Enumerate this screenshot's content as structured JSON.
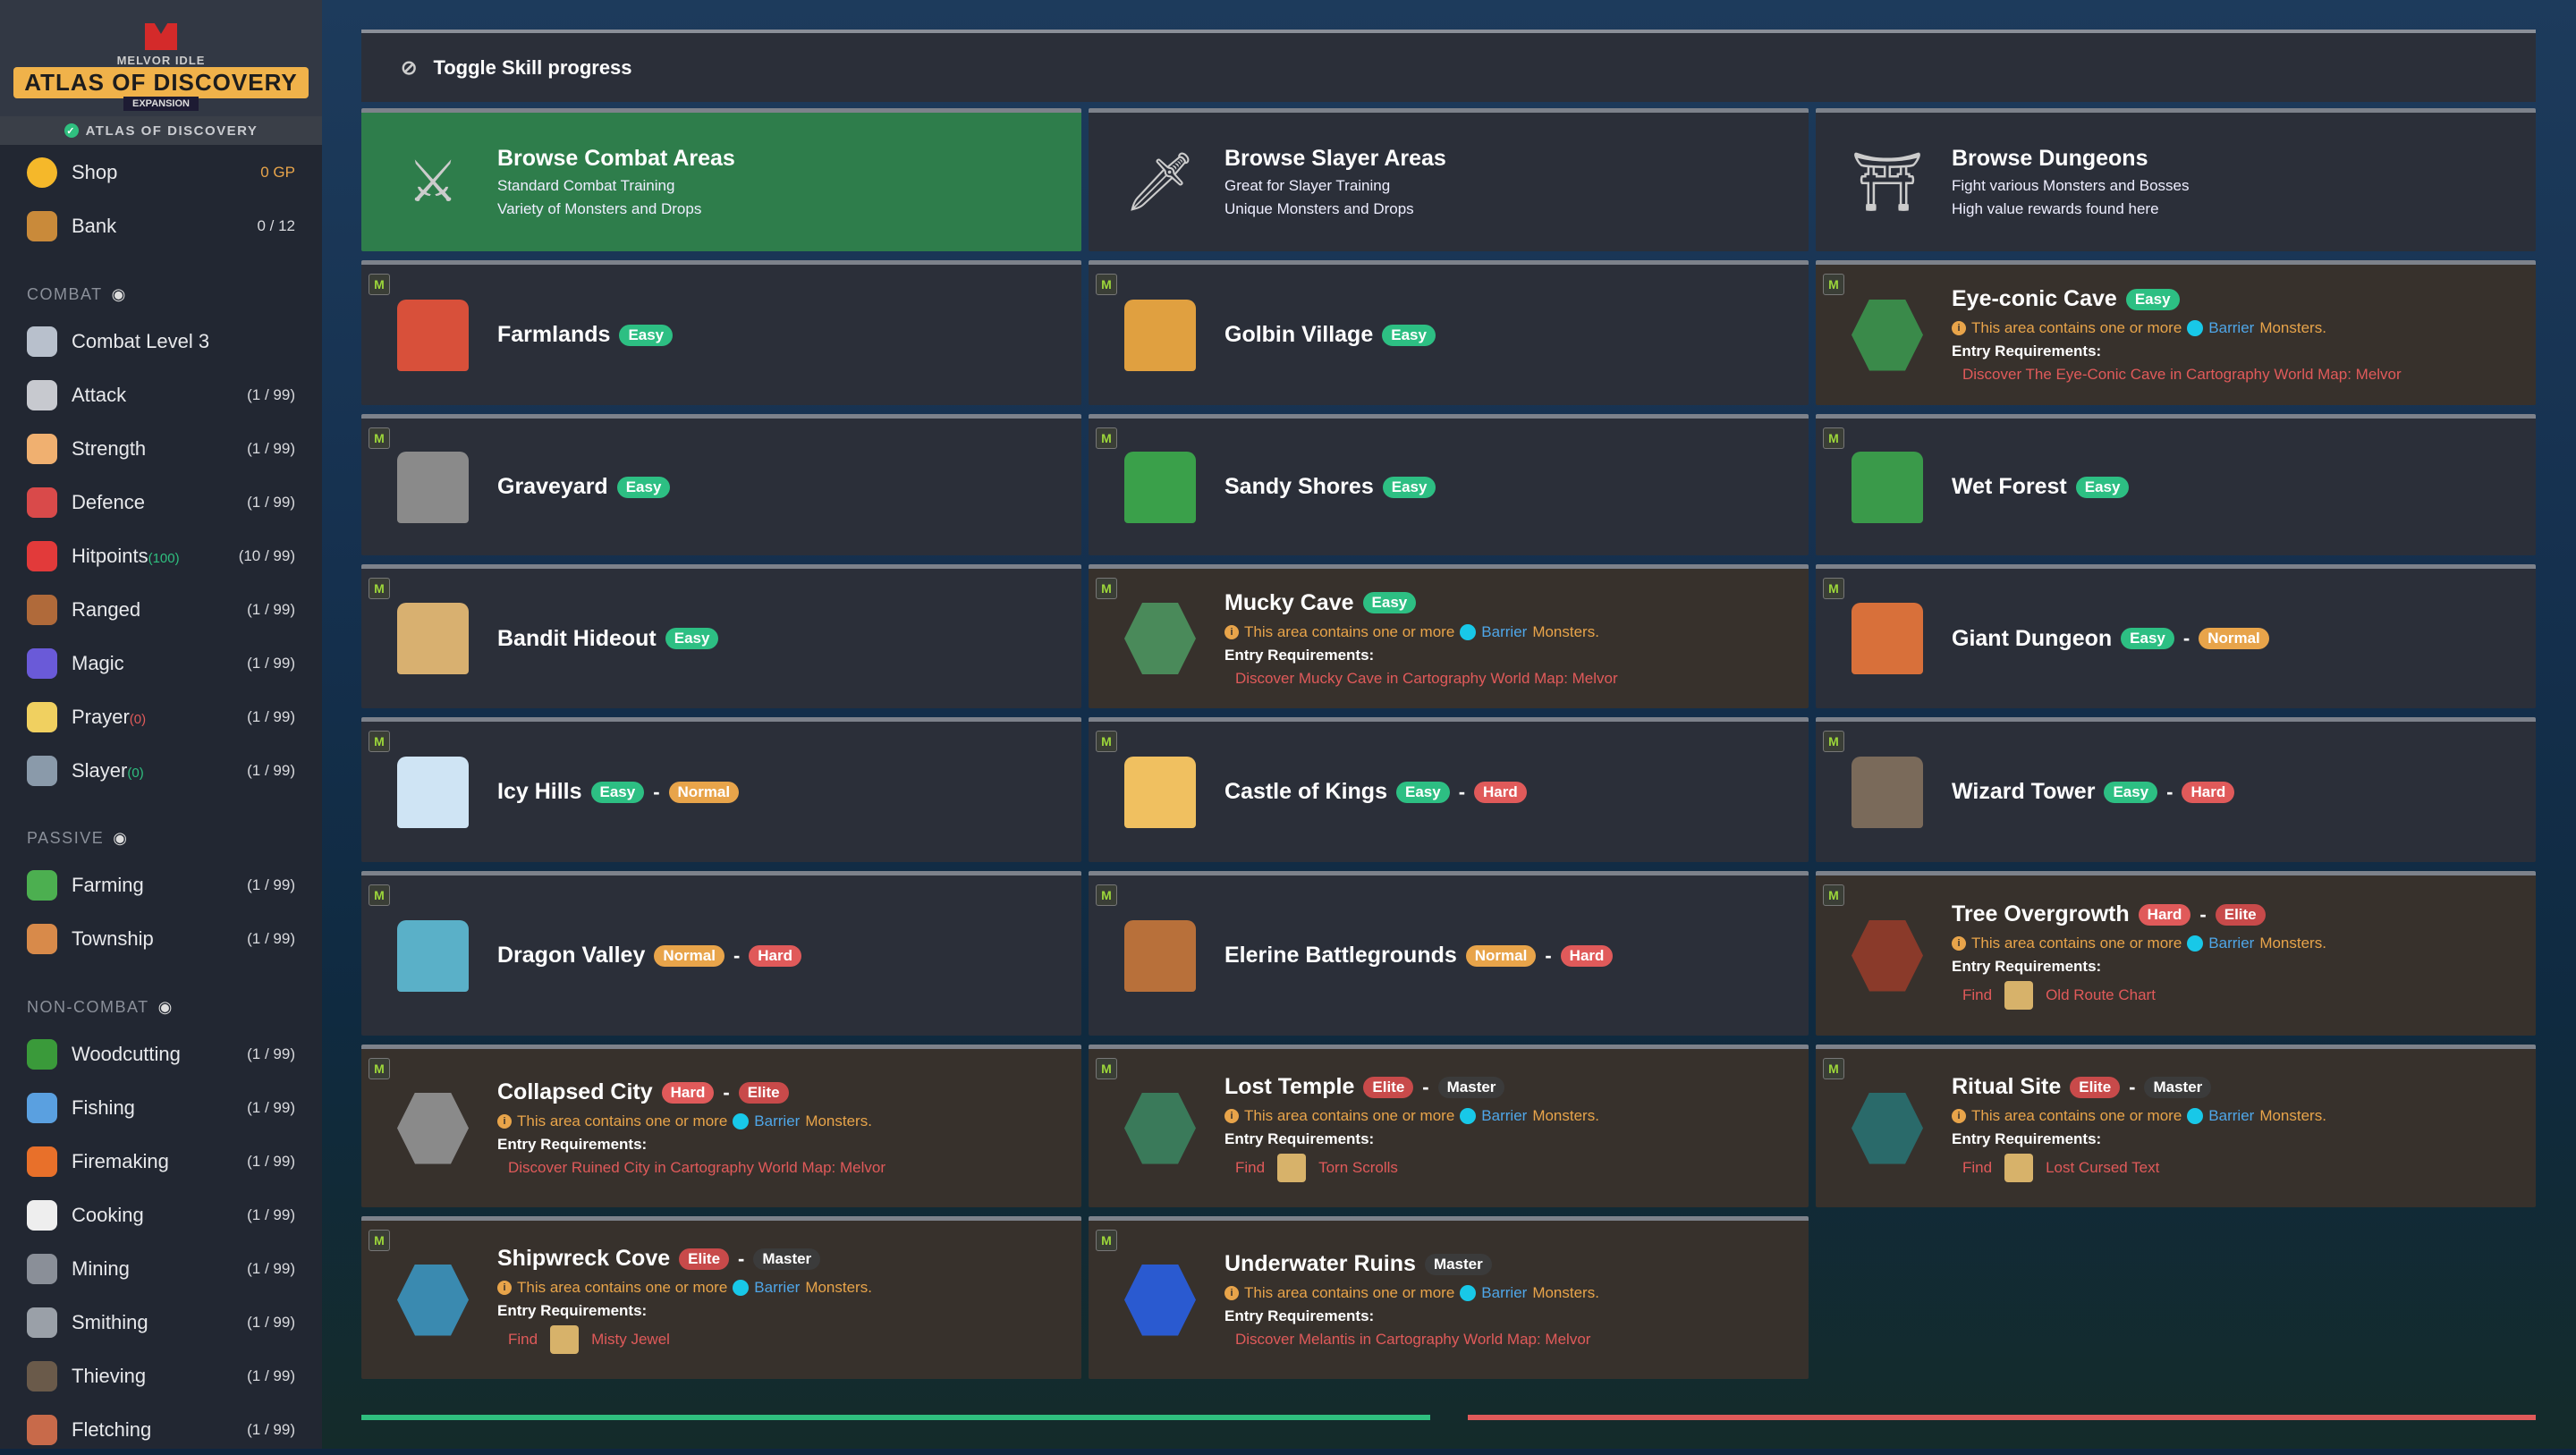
{
  "sidebar": {
    "logo": {
      "top": "MELVOR IDLE",
      "main": "ATLAS OF DISCOVERY",
      "sub": "EXPANSION"
    },
    "expansion_label": "ATLAS OF DISCOVERY",
    "shop": {
      "label": "Shop",
      "value": "0 GP",
      "icon": "gold-coin-icon"
    },
    "bank": {
      "label": "Bank",
      "value": "0 / 12",
      "icon": "treasure-chest-icon"
    },
    "sections": [
      {
        "title": "COMBAT",
        "items": [
          {
            "label": "Combat Level 3",
            "value": "",
            "icon": "crossed-swords-icon",
            "color": "#b8c0cc"
          },
          {
            "label": "Attack",
            "value": "(1 / 99)",
            "icon": "sword-icon",
            "color": "#c7c9cf"
          },
          {
            "label": "Strength",
            "value": "(1 / 99)",
            "icon": "fist-icon",
            "color": "#f0b070"
          },
          {
            "label": "Defence",
            "value": "(1 / 99)",
            "icon": "shield-icon",
            "color": "#d94a4a"
          },
          {
            "label": "Hitpoints",
            "extra": "(100)",
            "extra_color": "#2fbf7f",
            "value": "(10 / 99)",
            "icon": "heart-icon",
            "color": "#e23a3a"
          },
          {
            "label": "Ranged",
            "value": "(1 / 99)",
            "icon": "bow-icon",
            "color": "#b06a3a"
          },
          {
            "label": "Magic",
            "value": "(1 / 99)",
            "icon": "wizard-hat-icon",
            "color": "#6a5ad8"
          },
          {
            "label": "Prayer",
            "extra": "(0)",
            "extra_color": "#e05a5a",
            "value": "(1 / 99)",
            "icon": "prayer-star-icon",
            "color": "#f0d060"
          },
          {
            "label": "Slayer",
            "extra": "(0)",
            "extra_color": "#2fbf7f",
            "value": "(1 / 99)",
            "icon": "slayer-icon",
            "color": "#8a9aaa"
          }
        ]
      },
      {
        "title": "PASSIVE",
        "items": [
          {
            "label": "Farming",
            "value": "(1 / 99)",
            "icon": "farming-icon",
            "color": "#4caf50"
          },
          {
            "label": "Township",
            "value": "(1 / 99)",
            "icon": "township-icon",
            "color": "#d88a4a"
          }
        ]
      },
      {
        "title": "NON-COMBAT",
        "items": [
          {
            "label": "Woodcutting",
            "value": "(1 / 99)",
            "icon": "tree-icon",
            "color": "#3a9a3a"
          },
          {
            "label": "Fishing",
            "value": "(1 / 99)",
            "icon": "fish-icon",
            "color": "#5aa0e0"
          },
          {
            "label": "Firemaking",
            "value": "(1 / 99)",
            "icon": "fire-icon",
            "color": "#e8702a"
          },
          {
            "label": "Cooking",
            "value": "(1 / 99)",
            "icon": "chef-hat-icon",
            "color": "#eeeeee"
          },
          {
            "label": "Mining",
            "value": "(1 / 99)",
            "icon": "pickaxe-icon",
            "color": "#8a8f98"
          },
          {
            "label": "Smithing",
            "value": "(1 / 99)",
            "icon": "anvil-icon",
            "color": "#9aa0a8"
          },
          {
            "label": "Thieving",
            "value": "(1 / 99)",
            "icon": "thief-icon",
            "color": "#6a5a4a"
          },
          {
            "label": "Fletching",
            "value": "(1 / 99)",
            "icon": "arrow-icon",
            "color": "#c86a4a"
          }
        ]
      }
    ]
  },
  "toolbar": {
    "toggle_label": "Toggle Skill progress",
    "icon": "eye-slash-icon"
  },
  "browse": [
    {
      "title": "Browse Combat Areas",
      "lines": [
        "Standard Combat Training",
        "Variety of Monsters and Drops"
      ],
      "icon": "crossed-swords-icon",
      "active": true
    },
    {
      "title": "Browse Slayer Areas",
      "lines": [
        "Great for Slayer Training",
        "Unique Monsters and Drops"
      ],
      "icon": "slayer-sword-icon",
      "active": false
    },
    {
      "title": "Browse Dungeons",
      "lines": [
        "Fight various Monsters and Bosses",
        "High value rewards found here"
      ],
      "icon": "dungeon-door-icon",
      "active": false
    }
  ],
  "difficulty_colors": {
    "Easy": "#2dbf83",
    "Normal": "#e8a44a",
    "Hard": "#e05a5a",
    "Elite": "#c84a4a",
    "Master": "#3b3b3b"
  },
  "warning": {
    "prefix": "This area contains one or more",
    "keyword": "Barrier",
    "suffix": "Monsters."
  },
  "entry_label": "Entry Requirements:",
  "find_label": "Find",
  "areas": [
    {
      "name": "Farmlands",
      "diff": [
        "Easy"
      ],
      "icon": "barn-icon",
      "color": "#d8503a"
    },
    {
      "name": "Golbin Village",
      "diff": [
        "Easy"
      ],
      "icon": "village-icon",
      "color": "#e0a040"
    },
    {
      "name": "Eye-conic Cave",
      "diff": [
        "Easy"
      ],
      "icon": "cave-icon",
      "color": "#3a8a4a",
      "locked": true,
      "req": "Discover The Eye-Conic Cave in Cartography World Map: Melvor"
    },
    {
      "name": "Graveyard",
      "diff": [
        "Easy"
      ],
      "icon": "tombstone-icon",
      "color": "#8a8a8a"
    },
    {
      "name": "Sandy Shores",
      "diff": [
        "Easy"
      ],
      "icon": "palm-tree-icon",
      "color": "#3aa04a"
    },
    {
      "name": "Wet Forest",
      "diff": [
        "Easy"
      ],
      "icon": "forest-icon",
      "color": "#3a9a4a"
    },
    {
      "name": "Bandit Hideout",
      "diff": [
        "Easy"
      ],
      "icon": "tent-icon",
      "color": "#d8b070"
    },
    {
      "name": "Mucky Cave",
      "diff": [
        "Easy"
      ],
      "icon": "cave-icon",
      "color": "#4a8a5a",
      "locked": true,
      "req": "Discover Mucky Cave in Cartography World Map: Melvor"
    },
    {
      "name": "Giant Dungeon",
      "diff": [
        "Easy",
        "Normal"
      ],
      "icon": "giant-icon",
      "color": "#d8703a"
    },
    {
      "name": "Icy Hills",
      "diff": [
        "Easy",
        "Normal"
      ],
      "icon": "ice-mountain-icon",
      "color": "#cfe4f4"
    },
    {
      "name": "Castle of Kings",
      "diff": [
        "Easy",
        "Hard"
      ],
      "icon": "castle-icon",
      "color": "#f0c060"
    },
    {
      "name": "Wizard Tower",
      "diff": [
        "Easy",
        "Hard"
      ],
      "icon": "tower-icon",
      "color": "#7a6a5a"
    },
    {
      "name": "Dragon Valley",
      "diff": [
        "Normal",
        "Hard"
      ],
      "icon": "valley-icon",
      "color": "#5ab0c8"
    },
    {
      "name": "Elerine Battlegrounds",
      "diff": [
        "Normal",
        "Hard"
      ],
      "icon": "colosseum-icon",
      "color": "#b8703a"
    },
    {
      "name": "Tree Overgrowth",
      "diff": [
        "Hard",
        "Elite"
      ],
      "icon": "dead-tree-icon",
      "color": "#8a3a2a",
      "locked": true,
      "find": "Old Route Chart"
    },
    {
      "name": "Collapsed City",
      "diff": [
        "Hard",
        "Elite"
      ],
      "icon": "ruins-icon",
      "color": "#8a8a8a",
      "locked": true,
      "req": "Discover Ruined City in Cartography World Map: Melvor"
    },
    {
      "name": "Lost Temple",
      "diff": [
        "Elite",
        "Master"
      ],
      "icon": "temple-icon",
      "color": "#3a7a5a",
      "locked": true,
      "find": "Torn Scrolls"
    },
    {
      "name": "Ritual Site",
      "diff": [
        "Elite",
        "Master"
      ],
      "icon": "ritual-icon",
      "color": "#2a6a6a",
      "locked": true,
      "find": "Lost Cursed Text"
    },
    {
      "name": "Shipwreck Cove",
      "diff": [
        "Elite",
        "Master"
      ],
      "icon": "shipwreck-icon",
      "color": "#3a8ab0",
      "locked": true,
      "find": "Misty Jewel"
    },
    {
      "name": "Underwater Ruins",
      "diff": [
        "Master"
      ],
      "icon": "underwater-icon",
      "color": "#2a5ad0",
      "locked": true,
      "req": "Discover Melantis in Cartography World Map: Melvor"
    }
  ]
}
